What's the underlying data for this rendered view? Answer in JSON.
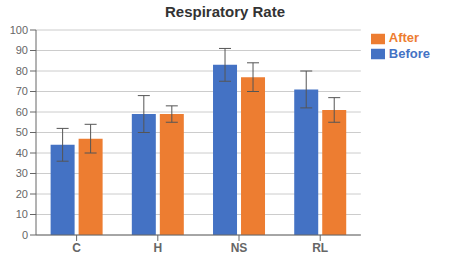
{
  "chart_data": {
    "type": "bar",
    "title": "Respiratory Rate",
    "categories": [
      "C",
      "H",
      "NS",
      "RL"
    ],
    "series": [
      {
        "name": "Before",
        "color": "#4472C4",
        "values": [
          44,
          59,
          83,
          71
        ],
        "errors": [
          8,
          9,
          8,
          9
        ]
      },
      {
        "name": "After",
        "color": "#ED7D31",
        "values": [
          47,
          59,
          77,
          61
        ],
        "errors": [
          7,
          4,
          7,
          6
        ]
      }
    ],
    "ylim": [
      0,
      100
    ],
    "yticks": [
      0,
      10,
      20,
      30,
      40,
      50,
      60,
      70,
      80,
      90,
      100
    ],
    "grid": true,
    "legend": "right"
  }
}
